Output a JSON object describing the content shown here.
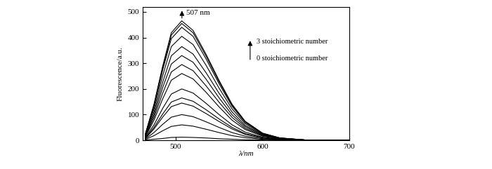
{
  "chart_data": {
    "type": "line",
    "x_label": "λ/nm",
    "y_label": "Fluorescence/a.u.",
    "x": [
      465,
      475,
      485,
      495,
      507,
      520,
      535,
      550,
      565,
      580,
      600,
      620,
      650,
      700
    ],
    "series": [
      {
        "color": "#000000",
        "values": [
          1,
          4,
          7,
          11,
          12,
          11,
          9,
          6,
          4,
          2,
          1,
          0,
          0,
          0
        ]
      },
      {
        "color": "#000000",
        "values": [
          3,
          18,
          37,
          54,
          60,
          55,
          43,
          30,
          18,
          10,
          4,
          1,
          0,
          0
        ]
      },
      {
        "color": "#000000",
        "values": [
          5,
          30,
          62,
          90,
          100,
          92,
          72,
          50,
          30,
          16,
          6,
          2,
          0,
          0
        ]
      },
      {
        "color": "#000000",
        "values": [
          7,
          44,
          90,
          131,
          145,
          133,
          104,
          73,
          44,
          23,
          9,
          3,
          0,
          0
        ]
      },
      {
        "color": "#000000",
        "values": [
          8,
          50,
          102,
          149,
          165,
          152,
          119,
          83,
          50,
          26,
          10,
          3,
          0,
          0
        ]
      },
      {
        "color": "#000000",
        "values": [
          10,
          60,
          124,
          180,
          200,
          184,
          144,
          100,
          60,
          32,
          12,
          4,
          1,
          0
        ]
      },
      {
        "color": "#000000",
        "values": [
          13,
          78,
          161,
          234,
          260,
          239,
          187,
          130,
          78,
          42,
          16,
          5,
          1,
          0
        ]
      },
      {
        "color": "#000000",
        "values": [
          15,
          89,
          183,
          266,
          295,
          271,
          212,
          148,
          89,
          47,
          18,
          6,
          1,
          0
        ]
      },
      {
        "color": "#000000",
        "values": [
          17,
          99,
          205,
          297,
          330,
          304,
          238,
          165,
          99,
          53,
          20,
          7,
          1,
          0
        ]
      },
      {
        "color": "#000000",
        "values": [
          18,
          110,
          226,
          329,
          365,
          336,
          263,
          183,
          110,
          58,
          22,
          7,
          1,
          0
        ]
      },
      {
        "color": "#000000",
        "values": [
          20,
          122,
          251,
          365,
          405,
          373,
          292,
          203,
          122,
          65,
          24,
          8,
          1,
          0
        ]
      },
      {
        "color": "#000000",
        "values": [
          22,
          132,
          273,
          396,
          440,
          405,
          317,
          220,
          132,
          70,
          26,
          9,
          1,
          0
        ]
      },
      {
        "color": "#000000",
        "values": [
          23,
          137,
          282,
          410,
          455,
          419,
          328,
          228,
          137,
          73,
          27,
          9,
          1,
          0
        ]
      },
      {
        "color": "#000000",
        "values": [
          23,
          140,
          288,
          419,
          465,
          428,
          335,
          233,
          140,
          74,
          28,
          9,
          1,
          0
        ]
      }
    ],
    "annotations": [
      {
        "text": "507 nm"
      },
      {
        "text": "3 stoichiometric number"
      },
      {
        "text": "0 stoichiometric number"
      }
    ],
    "xlim": [
      462,
      700
    ],
    "xticks": [
      500,
      600,
      700
    ],
    "ylim": [
      0,
      520
    ],
    "yticks": [
      0,
      100,
      200,
      300,
      400,
      500
    ],
    "grid": false
  }
}
